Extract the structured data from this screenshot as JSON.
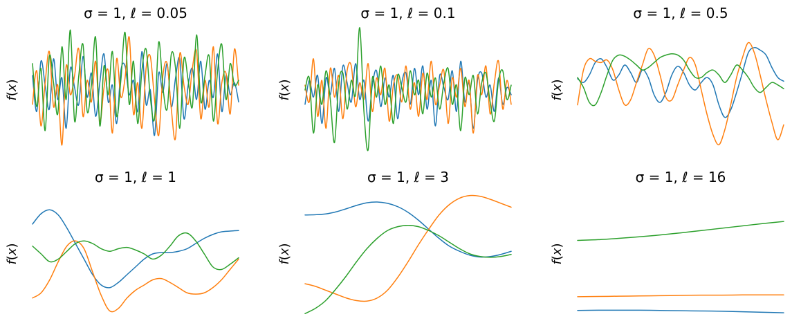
{
  "figure": {
    "colors": [
      "#1f77b4",
      "#ff7f0e",
      "#2ca02c"
    ]
  },
  "chart_data": [
    {
      "type": "line",
      "title": {
        "sigma_label": "σ = 1,",
        "ell_label": "ℓ = 0.05"
      },
      "ylabel": {
        "fn": "f",
        "open": "(",
        "var": "x",
        "close": ")"
      },
      "axes": "off",
      "ylim": [
        -2.6,
        2.6
      ],
      "series": [
        {
          "color": "#1f77b4",
          "y": [
            0.6,
            -0.9,
            1.2,
            0.2,
            -0.8,
            1.3,
            -0.4,
            0.5,
            -1.6,
            0.9,
            0.1,
            -0.6,
            1.4,
            -0.3,
            0.7,
            -1.1,
            0.3,
            1.5,
            -0.5,
            0.2,
            -1.4,
            0.8,
            1.0,
            -0.2,
            0.4,
            -0.9,
            1.6,
            -0.6,
            0.0,
            -1.9,
            0.7,
            -0.1,
            1.1,
            -0.7,
            0.5,
            1.3,
            -1.2,
            0.2,
            0.9,
            -0.4,
            1.2,
            -0.8,
            0.4,
            -0.3,
            1.5,
            -0.9,
            0.6,
            -0.2,
            0.3,
            -0.5
          ]
        },
        {
          "color": "#ff7f0e",
          "y": [
            -0.6,
            0.8,
            -1.5,
            0.3,
            1.6,
            -0.7,
            0.2,
            -2.3,
            1.0,
            -0.2,
            0.6,
            1.7,
            -1.1,
            0.4,
            -0.5,
            1.2,
            -1.3,
            0.1,
            0.8,
            -1.8,
            1.3,
            -0.3,
            0.5,
            2.2,
            -1.0,
            0.3,
            -1.6,
            0.9,
            1.4,
            -0.4,
            -1.9,
            0.6,
            1.1,
            -0.8,
            -2.0,
            1.5,
            0.2,
            -0.6,
            0.9,
            1.6,
            -1.2,
            0.4,
            -0.7,
            1.8,
            -1.4,
            0.3,
            0.7,
            -1.0,
            1.7,
            0.2
          ]
        },
        {
          "color": "#2ca02c",
          "y": [
            1.1,
            -0.7,
            0.9,
            -1.7,
            1.4,
            0.3,
            -1.0,
            1.8,
            -0.4,
            2.5,
            -1.3,
            0.6,
            1.9,
            -0.9,
            0.2,
            2.2,
            -1.5,
            1.0,
            -0.2,
            1.6,
            -1.1,
            0.4,
            2.4,
            -0.6,
            1.2,
            -1.4,
            0.8,
            1.7,
            -0.3,
            -1.2,
            2.0,
            0.1,
            -0.8,
            1.5,
            0.9,
            -1.6,
            1.3,
            0.4,
            -0.7,
            2.3,
            -0.5,
            0.6,
            1.4,
            -1.3,
            0.8,
            1.9,
            -0.4,
            1.1,
            0.2,
            0.4
          ]
        }
      ]
    },
    {
      "type": "line",
      "title": {
        "sigma_label": "σ = 1,",
        "ell_label": "ℓ = 0.1"
      },
      "ylabel": {
        "fn": "f",
        "open": "(",
        "var": "x",
        "close": ")"
      },
      "axes": "off",
      "ylim": [
        -2.6,
        2.6
      ],
      "series": [
        {
          "color": "#1f77b4",
          "y": [
            -0.6,
            0.4,
            -0.3,
            0.6,
            -1.4,
            0.5,
            -0.2,
            0.9,
            -0.9,
            1.0,
            0.3,
            -0.5,
            1.1,
            -0.4,
            0.4,
            -1.3,
            0.2,
            0.8,
            -0.7,
            0.5,
            -0.3,
            0.6,
            -1.2,
            0.3,
            0.7,
            -0.6,
            0.9,
            -0.2,
            1.0,
            -0.8,
            0.4,
            -1.5,
            0.6,
            0.1,
            -0.4,
            0.8,
            -0.9,
            1.2,
            -0.5,
            0.3,
            -1.6,
            0.4,
            0.7,
            -0.3,
            0.2,
            -0.9,
            0.5,
            -0.6,
            0.1,
            -0.2
          ]
        },
        {
          "color": "#ff7f0e",
          "y": [
            0.2,
            -0.5,
            1.3,
            -1.1,
            0.4,
            -1.6,
            0.9,
            -0.3,
            0.6,
            -1.2,
            0.8,
            1.0,
            -0.7,
            0.3,
            -0.4,
            1.1,
            -0.9,
            0.5,
            -0.2,
            0.9,
            -1.3,
            0.2,
            0.6,
            -0.5,
            1.0,
            -0.8,
            0.3,
            -1.1,
            0.7,
            -0.4,
            1.2,
            -0.6,
            0.2,
            0.8,
            -1.4,
            0.5,
            -0.3,
            0.9,
            -0.7,
            0.4,
            -1.8,
            0.6,
            -0.2,
            1.0,
            -1.0,
            0.3,
            1.2,
            -0.8,
            0.4,
            -0.6
          ]
        },
        {
          "color": "#2ca02c",
          "y": [
            0.0,
            0.5,
            -1.8,
            0.2,
            -0.6,
            0.8,
            -0.4,
            -2.2,
            0.3,
            0.7,
            -0.8,
            0.4,
            -0.2,
            2.6,
            -0.9,
            -2.5,
            0.5,
            -0.3,
            1.0,
            -0.6,
            0.2,
            -1.4,
            0.6,
            0.1,
            -0.5,
            0.8,
            -0.2,
            0.4,
            -1.0,
            0.7,
            -0.3,
            0.5,
            -0.8,
            0.3,
            0.9,
            -0.6,
            0.2,
            -1.7,
            0.5,
            -0.2,
            0.6,
            -1.0,
            0.3,
            0.7,
            -0.5,
            -1.3,
            0.4,
            0.8,
            -0.4,
            0.2
          ]
        }
      ]
    },
    {
      "type": "line",
      "title": {
        "sigma_label": "σ = 1,",
        "ell_label": "ℓ = 0.5"
      },
      "ylabel": {
        "fn": "f",
        "open": "(",
        "var": "x",
        "close": ")"
      },
      "axes": "off",
      "ylim": [
        -2.5,
        2.5
      ],
      "series": [
        {
          "color": "#1f77b4",
          "y": [
            0.45,
            0.3,
            0.6,
            1.1,
            1.25,
            0.9,
            0.4,
            0.6,
            1.0,
            0.7,
            0.3,
            0.8,
            0.5,
            -0.2,
            -0.5,
            -0.1,
            0.6,
            0.95,
            0.7,
            0.2,
            0.0,
            0.3,
            0.5,
            0.2,
            -0.6,
            -1.1,
            -0.8,
            -0.1,
            0.7,
            1.5,
            1.7,
            1.6,
            1.4,
            0.9,
            0.5,
            0.35
          ]
        },
        {
          "color": "#ff7f0e",
          "y": [
            -0.6,
            0.8,
            1.25,
            1.15,
            1.1,
            1.2,
            0.8,
            0.0,
            -0.6,
            -0.4,
            0.3,
            1.0,
            1.65,
            1.4,
            0.6,
            -0.3,
            -0.4,
            0.2,
            0.8,
            1.3,
            1.0,
            0.0,
            -1.0,
            -1.8,
            -2.2,
            -1.6,
            -0.6,
            0.5,
            1.3,
            1.9,
            1.5,
            0.6,
            -0.4,
            -1.3,
            -2.0,
            -1.4
          ]
        },
        {
          "color": "#2ca02c",
          "y": [
            0.5,
            0.1,
            -0.5,
            -0.6,
            -0.1,
            0.6,
            1.2,
            1.4,
            1.35,
            1.2,
            1.0,
            0.8,
            0.9,
            1.1,
            1.3,
            1.4,
            1.45,
            1.4,
            1.2,
            0.8,
            0.5,
            0.5,
            0.7,
            0.8,
            0.6,
            0.3,
            0.6,
            1.0,
            0.8,
            0.5,
            0.1,
            -0.1,
            0.1,
            0.3,
            0.2,
            0.05
          ]
        }
      ]
    },
    {
      "type": "line",
      "title": {
        "sigma_label": "σ = 1,",
        "ell_label": "ℓ = 1"
      },
      "ylabel": {
        "fn": "f",
        "open": "(",
        "var": "x",
        "close": ")"
      },
      "axes": "off",
      "ylim": [
        -2.4,
        2.4
      ],
      "series": [
        {
          "color": "#1f77b4",
          "y": [
            1.15,
            1.55,
            1.7,
            1.5,
            1.0,
            0.4,
            -0.2,
            -0.8,
            -1.2,
            -1.3,
            -1.1,
            -0.8,
            -0.5,
            -0.2,
            0.0,
            0.05,
            0.05,
            0.1,
            0.2,
            0.4,
            0.6,
            0.75,
            0.85,
            0.88,
            0.9
          ]
        },
        {
          "color": "#ff7f0e",
          "y": [
            -1.7,
            -1.5,
            -1.0,
            -0.3,
            0.3,
            0.5,
            0.2,
            -0.7,
            -1.6,
            -2.2,
            -2.1,
            -1.7,
            -1.4,
            -1.2,
            -1.0,
            -0.95,
            -1.1,
            -1.3,
            -1.5,
            -1.55,
            -1.5,
            -1.3,
            -1.0,
            -0.6,
            -0.2
          ]
        },
        {
          "color": "#2ca02c",
          "y": [
            0.3,
            0.0,
            -0.3,
            -0.2,
            0.1,
            0.4,
            0.5,
            0.4,
            0.2,
            0.1,
            0.2,
            0.25,
            0.15,
            0.0,
            -0.2,
            -0.05,
            0.3,
            0.7,
            0.8,
            0.5,
            0.0,
            -0.5,
            -0.6,
            -0.4,
            -0.15
          ]
        }
      ]
    },
    {
      "type": "line",
      "title": {
        "sigma_label": "σ = 1,",
        "ell_label": "ℓ = 3"
      },
      "ylabel": {
        "fn": "f",
        "open": "(",
        "var": "x",
        "close": ")"
      },
      "axes": "off",
      "ylim": [
        -2.4,
        2.4
      ],
      "series": [
        {
          "color": "#1f77b4",
          "y": [
            1.5,
            1.51,
            1.54,
            1.62,
            1.74,
            1.87,
            1.97,
            2.0,
            1.95,
            1.82,
            1.6,
            1.3,
            0.95,
            0.6,
            0.3,
            0.1,
            -0.05,
            -0.12,
            -0.1,
            -0.02,
            0.1
          ]
        },
        {
          "color": "#ff7f0e",
          "y": [
            -1.15,
            -1.25,
            -1.4,
            -1.55,
            -1.7,
            -1.8,
            -1.82,
            -1.7,
            -1.4,
            -0.9,
            -0.3,
            0.35,
            0.95,
            1.5,
            1.9,
            2.15,
            2.25,
            2.22,
            2.1,
            1.95,
            1.8
          ]
        },
        {
          "color": "#2ca02c",
          "y": [
            -2.3,
            -2.1,
            -1.8,
            -1.35,
            -0.85,
            -0.3,
            0.2,
            0.6,
            0.9,
            1.05,
            1.1,
            1.05,
            0.9,
            0.7,
            0.45,
            0.2,
            0.0,
            -0.1,
            -0.13,
            -0.1,
            -0.02
          ]
        }
      ]
    },
    {
      "type": "line",
      "title": {
        "sigma_label": "σ = 1,",
        "ell_label": "ℓ = 16"
      },
      "ylabel": {
        "fn": "f",
        "open": "(",
        "var": "x",
        "close": ")"
      },
      "axes": "off",
      "ylim": [
        -2.4,
        2.4
      ],
      "series": [
        {
          "color": "#1f77b4",
          "y": [
            -2.18,
            -2.17,
            -2.17,
            -2.17,
            -2.18,
            -2.19,
            -2.2,
            -2.21,
            -2.23,
            -2.25,
            -2.27
          ]
        },
        {
          "color": "#ff7f0e",
          "y": [
            -1.65,
            -1.64,
            -1.63,
            -1.62,
            -1.61,
            -1.6,
            -1.59,
            -1.59,
            -1.58,
            -1.58,
            -1.58
          ]
        },
        {
          "color": "#2ca02c",
          "y": [
            0.52,
            0.55,
            0.6,
            0.66,
            0.73,
            0.81,
            0.9,
            0.99,
            1.08,
            1.17,
            1.25
          ]
        }
      ]
    }
  ]
}
